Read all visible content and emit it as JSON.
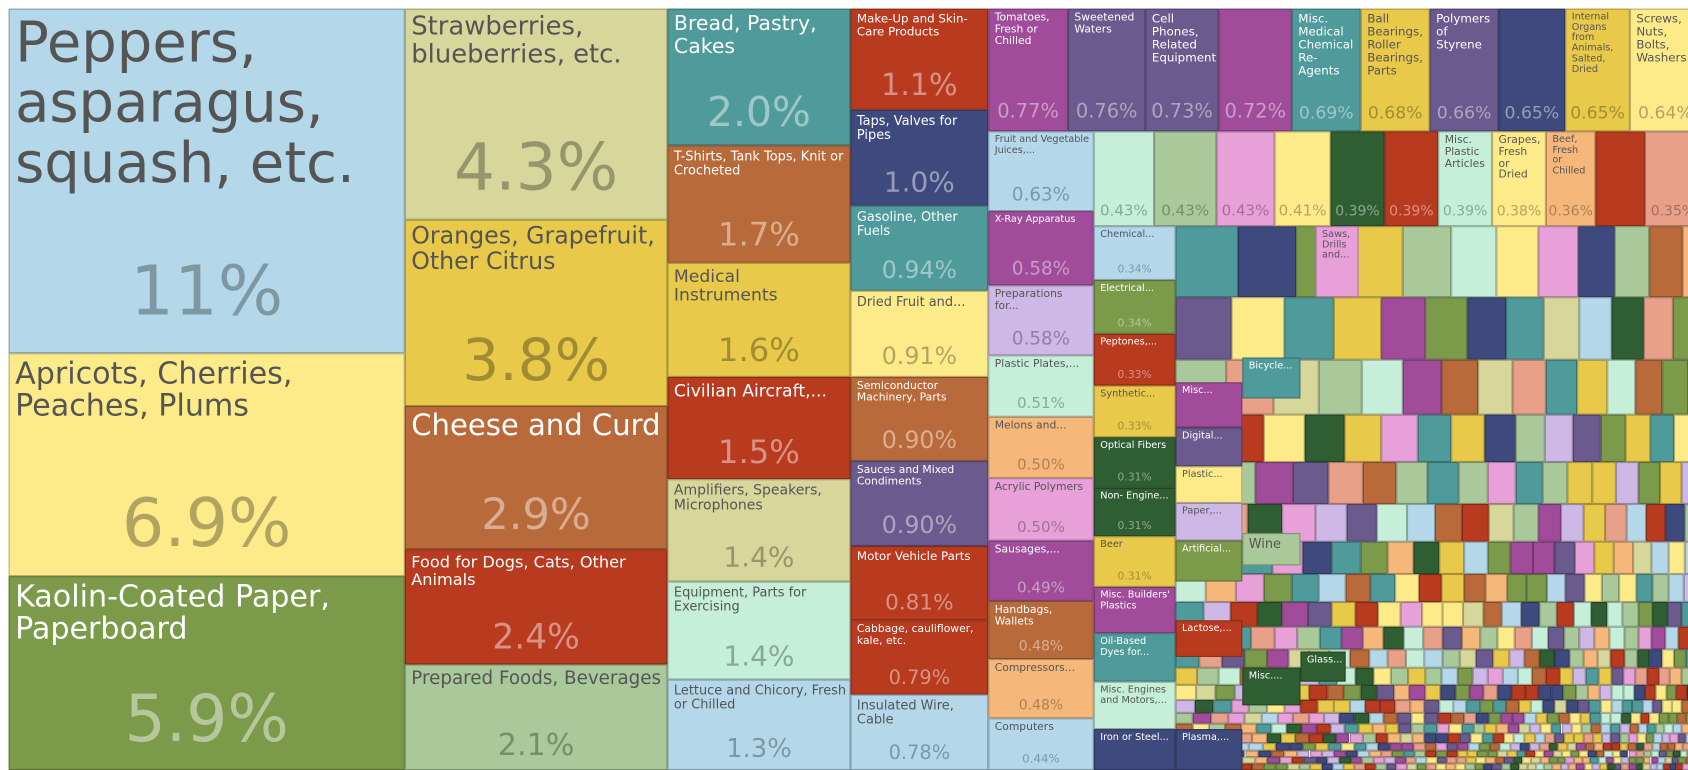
{
  "chart_data": {
    "type": "treemap",
    "labels": [
      "Peppers, asparagus, squash, etc.",
      "Apricots, Cherries, Peaches, Plums",
      "Kaolin-Coated Paper, Paperboard",
      "Strawberries, blueberries, etc.",
      "Oranges, Grapefruit, Other Citrus",
      "Cheese and Curd",
      "Food for Dogs, Cats, Other Animals",
      "Prepared Foods, Beverages",
      "Bread, Pastry, Cakes",
      "T-Shirts, Tank Tops, Knit or Crocheted",
      "Medical Instruments",
      "Civilian Aircraft,...",
      "Amplifiers, Speakers, Microphones",
      "Equipment, Parts for Exercising",
      "Lettuce and Chicory, Fresh or Chilled",
      "Make-Up and Skin-Care Products",
      "Taps, Valves for Pipes",
      "Gasoline, Other Fuels",
      "Dried Fruit and...",
      "Semiconductor Machinery, Parts",
      "Sauces and Mixed Condiments",
      "Motor Vehicle Parts",
      "Cabbage, cauliflower, kale, etc.",
      "Insulated Wire, Cable",
      "Tomatoes, Fresh or Chilled",
      "Sweetened Waters",
      "Cell Phones, Related Equipment",
      null,
      "Misc. Medical Chemical Re-Agents",
      "Ball Bearings, Roller Bearings, Parts",
      "Polymers of Styrene",
      null,
      "Internal Organs from Animals, Salted, Dried",
      "Screws, Nuts, Bolts, Washers",
      "Fruit and Vegetable Juices,...",
      "X-Ray Apparatus",
      "Preparations for...",
      "Plastic Plates,...",
      "Melons and...",
      "Acrylic Polymers",
      "Sausages,...",
      "Handbags, Wallets",
      "Compressors...",
      "Computers",
      null,
      null,
      null,
      null,
      null,
      null,
      "Misc. Plastic Articles",
      "Grapes, Fresh or Dried",
      "Beef, Fresh or Chilled",
      null,
      "Chemical...",
      "Electrical...",
      "Peptones,...",
      "Synthetic...",
      "Optical Fibers",
      "Non- Engine...",
      "Beer",
      "Misc. Builders' Plastics",
      "Oil-Based Dyes for...",
      "Misc. Engines and Motors,...",
      "Iron or Steel...",
      "Misc...",
      "Digital...",
      "Plastic...",
      "Paper,...",
      "Artificial...",
      "Lactose,...",
      "Plasma,...",
      "Bicycle...",
      "Wine",
      "Misc....",
      "Saws, Drills and...",
      "Glass..."
    ],
    "values": [
      11,
      6.9,
      5.9,
      4.3,
      3.8,
      2.9,
      2.4,
      2.1,
      2.0,
      1.7,
      1.6,
      1.5,
      1.4,
      1.4,
      1.3,
      1.1,
      1.0,
      0.94,
      0.91,
      0.9,
      0.9,
      0.81,
      0.79,
      0.78,
      0.77,
      0.76,
      0.73,
      0.72,
      0.69,
      0.68,
      0.66,
      0.65,
      0.65,
      0.64,
      0.63,
      0.58,
      0.58,
      0.51,
      0.5,
      0.5,
      0.49,
      0.48,
      0.48,
      0.44,
      0.43,
      0.43,
      0.43,
      0.41,
      0.39,
      0.39,
      0.39,
      0.38,
      0.36,
      0.35,
      0.34,
      0.34,
      0.33,
      0.33,
      0.31,
      0.31,
      0.31,
      null,
      null,
      null,
      null,
      null,
      null,
      null,
      null,
      null,
      null,
      null,
      null,
      null,
      null,
      null,
      null
    ],
    "value_labels": [
      "11%",
      "6.9%",
      "5.9%",
      "4.3%",
      "3.8%",
      "2.9%",
      "2.4%",
      "2.1%",
      "2.0%",
      "1.7%",
      "1.6%",
      "1.5%",
      "1.4%",
      "1.4%",
      "1.3%",
      "1.1%",
      "1.0%",
      "0.94%",
      "0.91%",
      "0.90%",
      "0.90%",
      "0.81%",
      "0.79%",
      "0.78%",
      "0.77%",
      "0.76%",
      "0.73%",
      "0.72%",
      "0.69%",
      "0.68%",
      "0.66%",
      "0.65%",
      "0.65%",
      "0.64%",
      "0.63%",
      "0.58%",
      "0.58%",
      "0.51%",
      "0.50%",
      "0.50%",
      "0.49%",
      "0.48%",
      "0.48%",
      "0.44%",
      "0.43%",
      "0.43%",
      "0.43%",
      "0.41%",
      "0.39%",
      "0.39%",
      "0.39%",
      "0.38%",
      "0.36%",
      "0.35%",
      "0.34%",
      "0.34%",
      "0.33%",
      "0.33%",
      "0.31%",
      "0.31%",
      "0.31%",
      null,
      null,
      null,
      null,
      null,
      null,
      null,
      null,
      null,
      null,
      null,
      null,
      null,
      null,
      null,
      null
    ],
    "colors": [
      "#b4d8ea",
      "#fdeb8a",
      "#7b9a4a",
      "#d7d79b",
      "#e8c94a",
      "#b96a3a",
      "#b83a1f",
      "#a9c99a",
      "#4f9b9b",
      "#b96a3a",
      "#e8c94a",
      "#b83a1f",
      "#d7d79b",
      "#c5efd8",
      "#b4d8ea",
      "#b83a1f",
      "#3e4a7e",
      "#4f9b9b",
      "#fdeb8a",
      "#b96a3a",
      "#6a5a8e",
      "#b83a1f",
      "#b83a1f",
      "#b4d8ea",
      "#a04c9a",
      "#6a5a8e",
      "#6a5a8e",
      "#a04c9a",
      "#4f9b9b",
      "#e8c94a",
      "#6a5a8e",
      "#3e4a7e",
      "#e8c94a",
      "#fdeb8a",
      "#b4d8ea",
      "#a04c9a",
      "#cdb8e6",
      "#c5efd8",
      "#f5b87a",
      "#e8a0d8",
      "#a04c9a",
      "#b96a3a",
      "#f5b87a",
      "#b4d8ea",
      "#c5efd8",
      "#a9c99a",
      "#e8a0d8",
      "#fdeb8a",
      "#2f5e32",
      "#b83a1f",
      "#c5efd8",
      "#fdeb8a",
      "#f5b87a",
      "#e8a088",
      "#b4d8ea",
      "#7b9a4a",
      "#b83a1f",
      "#e8c94a",
      "#2f5e32",
      "#2f5e32",
      "#e8c94a",
      "#a04c9a",
      "#4f9b9b",
      "#c5efd8",
      "#3e4a7e",
      "#a04c9a",
      "#6a5a8e",
      "#fdeb8a",
      "#cdb8e6",
      "#7b9a4a",
      "#b83a1f",
      "#3e4a7e",
      "#4f9b9b",
      "#a9c99a",
      "#2f5e32",
      "#e8a0d8",
      "#2f5e32"
    ]
  }
}
